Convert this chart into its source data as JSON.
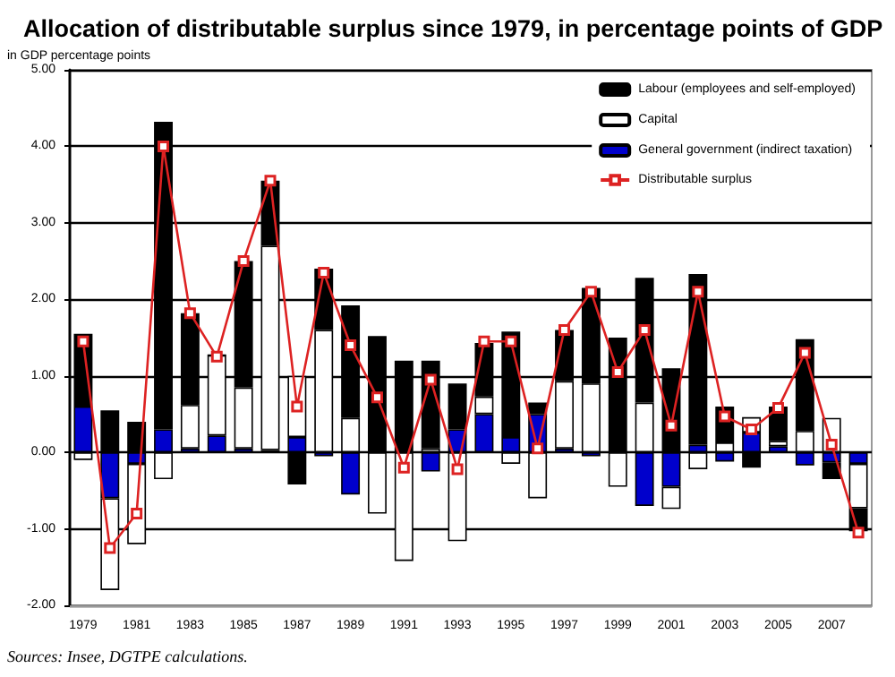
{
  "chart_data": {
    "type": "bar",
    "title": "Allocation of distributable surplus since 1979, in percentage points of GDP",
    "ylabel": "in GDP percentage points",
    "annotations": [
      "Sources: Insee, DGTPE calculations."
    ],
    "categories": [
      "1979",
      null,
      "1981",
      null,
      "1983",
      null,
      "1985",
      null,
      "1987",
      null,
      "1989",
      null,
      "1991",
      null,
      "1993",
      null,
      "1995",
      null,
      "1997",
      null,
      "1999",
      null,
      "2001",
      null,
      "2003",
      null,
      "2005",
      null,
      "2007",
      null
    ],
    "stacked": true,
    "grid": "y",
    "legend": "top right",
    "marker": "square",
    "ylim": [
      -2,
      5
    ],
    "yticks": [
      {
        "value": -2,
        "label": "-2.00"
      },
      {
        "value": -1,
        "label": "-1.00"
      },
      {
        "value": 0,
        "label": "0.00"
      },
      {
        "value": 1,
        "label": "1.00"
      },
      {
        "value": 2,
        "label": "2.00"
      },
      {
        "value": 3,
        "label": "3.00"
      },
      {
        "value": 4,
        "label": "4.00"
      },
      {
        "value": 5,
        "label": "5.00"
      }
    ],
    "series": [
      {
        "name": "General government (indirect taxation)",
        "color": "#0000cc",
        "values": [
          0.6,
          -0.6,
          -0.15,
          0.3,
          0.05,
          0.22,
          0.05,
          0.03,
          0.2,
          -0.05,
          -0.55,
          0,
          0,
          -0.25,
          0.3,
          0.5,
          0.2,
          0.5,
          0.05,
          -0.05,
          0,
          -0.7,
          -0.45,
          0.1,
          -0.12,
          0.26,
          0.08,
          -0.17,
          -0.13,
          -0.15
        ]
      },
      {
        "name": "Capital",
        "color": "#ffffff",
        "values": [
          -0.1,
          -1.2,
          -1.05,
          -0.35,
          0.57,
          1.05,
          0.8,
          2.67,
          0.8,
          1.6,
          0.45,
          -0.8,
          -1.42,
          0.05,
          -1.16,
          0.23,
          -0.15,
          -0.6,
          0.88,
          0.9,
          -0.45,
          0.65,
          -0.29,
          -0.22,
          0.13,
          0.2,
          0.07,
          0.28,
          0.45,
          -0.58
        ]
      },
      {
        "name": "Labour (employees and self-employed)",
        "color": "#000000",
        "values": [
          0.95,
          0.55,
          0.4,
          4.02,
          1.2,
          0,
          1.65,
          0.85,
          -0.42,
          0.8,
          1.47,
          1.52,
          1.2,
          1.15,
          0.6,
          0.7,
          1.38,
          0.15,
          0.67,
          1.25,
          1.5,
          1.63,
          1.1,
          2.23,
          0.47,
          -0.2,
          0.45,
          1.2,
          -0.22,
          -0.3
        ]
      },
      {
        "name": "Distributable surplus",
        "type": "line",
        "color": "#dd2222",
        "values": [
          1.45,
          -1.25,
          -0.8,
          4.0,
          1.82,
          1.25,
          2.5,
          3.55,
          0.6,
          2.35,
          1.4,
          0.72,
          -0.2,
          0.95,
          -0.22,
          1.45,
          1.45,
          0.05,
          1.6,
          2.1,
          1.05,
          1.6,
          0.35,
          2.1,
          0.47,
          0.3,
          0.58,
          1.3,
          0.1,
          -1.05
        ]
      }
    ]
  }
}
